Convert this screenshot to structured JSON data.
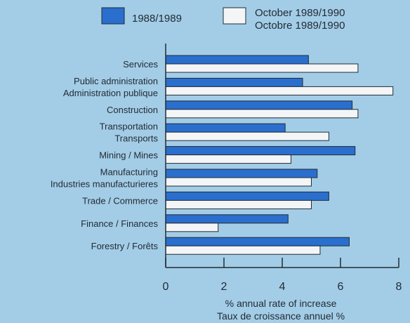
{
  "chart_data": {
    "type": "bar",
    "orientation": "horizontal",
    "categories": [
      [
        "Services"
      ],
      [
        "Public administration",
        "Administration publique"
      ],
      [
        "Construction"
      ],
      [
        "Transportation",
        "Transports"
      ],
      [
        "Mining / Mines"
      ],
      [
        "Manufacturing",
        "Industries manufacturieres"
      ],
      [
        "Trade / Commerce"
      ],
      [
        "Finance / Finances"
      ],
      [
        "Forestry / Forêts"
      ]
    ],
    "series": [
      {
        "name": "1988/1989",
        "color": "#2a6fce",
        "values": [
          4.9,
          4.7,
          6.4,
          4.1,
          6.5,
          5.2,
          5.6,
          4.2,
          6.3
        ]
      },
      {
        "name": [
          "October 1989/1990",
          "Octobre 1989/1990"
        ],
        "color": "#f3f5f6",
        "values": [
          6.6,
          7.8,
          6.6,
          5.6,
          4.3,
          5.0,
          5.0,
          1.8,
          5.3
        ]
      }
    ],
    "xlabel": [
      "% annual rate of increase",
      "Taux de croissance annuel %"
    ],
    "xlim": [
      0,
      8
    ],
    "xticks": [
      "0",
      "2",
      "4",
      "6",
      "8"
    ],
    "grid": false,
    "legend": "top"
  }
}
